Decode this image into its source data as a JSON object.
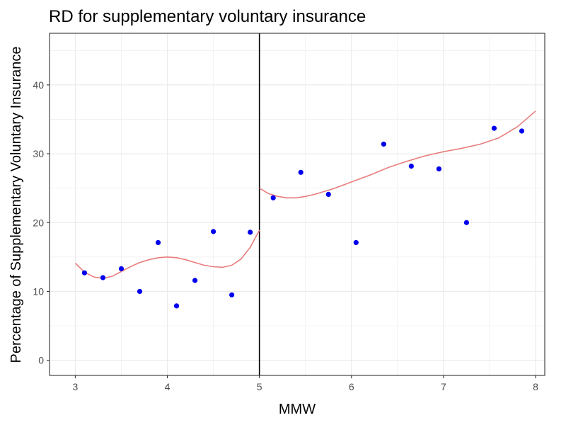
{
  "chart_data": {
    "type": "scatter",
    "title": "RD for supplementary voluntary insurance",
    "xlabel": "MMW",
    "ylabel": "Percentage of Supplementary Voluntary Insurance",
    "xlim": [
      2.72,
      8.1
    ],
    "ylim": [
      -2.2,
      47.5
    ],
    "x_ticks": [
      3,
      4,
      5,
      6,
      7,
      8
    ],
    "y_ticks": [
      0,
      10,
      20,
      30,
      40
    ],
    "x_minor": [
      3.5,
      4.5,
      5.5,
      6.5,
      7.5
    ],
    "y_minor": [
      5,
      15,
      25,
      35,
      45
    ],
    "grid": true,
    "cutoff": 5,
    "points": [
      {
        "x": 3.1,
        "y": 12.7
      },
      {
        "x": 3.3,
        "y": 12.0
      },
      {
        "x": 3.5,
        "y": 13.3
      },
      {
        "x": 3.7,
        "y": 10.0
      },
      {
        "x": 3.9,
        "y": 17.1
      },
      {
        "x": 4.1,
        "y": 7.9
      },
      {
        "x": 4.3,
        "y": 11.6
      },
      {
        "x": 4.5,
        "y": 18.7
      },
      {
        "x": 4.7,
        "y": 9.5
      },
      {
        "x": 4.9,
        "y": 18.6
      },
      {
        "x": 5.15,
        "y": 23.6
      },
      {
        "x": 5.45,
        "y": 27.3
      },
      {
        "x": 5.75,
        "y": 24.1
      },
      {
        "x": 6.05,
        "y": 17.1
      },
      {
        "x": 6.35,
        "y": 31.4
      },
      {
        "x": 6.65,
        "y": 28.2
      },
      {
        "x": 6.95,
        "y": 27.8
      },
      {
        "x": 7.25,
        "y": 20.0
      },
      {
        "x": 7.55,
        "y": 33.7
      },
      {
        "x": 7.85,
        "y": 33.3
      }
    ],
    "fit_left": {
      "x": [
        3.0,
        3.1,
        3.2,
        3.3,
        3.4,
        3.5,
        3.6,
        3.7,
        3.8,
        3.9,
        4.0,
        4.1,
        4.2,
        4.3,
        4.4,
        4.5,
        4.6,
        4.7,
        4.8,
        4.9,
        5.0
      ],
      "y": [
        14.1,
        12.8,
        12.1,
        11.9,
        12.2,
        12.9,
        13.6,
        14.2,
        14.6,
        14.9,
        15.0,
        14.9,
        14.6,
        14.2,
        13.8,
        13.6,
        13.5,
        13.8,
        14.7,
        16.4,
        18.9
      ]
    },
    "fit_right": {
      "x": [
        5.0,
        5.1,
        5.2,
        5.3,
        5.4,
        5.5,
        5.6,
        5.7,
        5.8,
        5.9,
        6.0,
        6.2,
        6.4,
        6.6,
        6.8,
        7.0,
        7.2,
        7.4,
        7.6,
        7.8,
        8.0
      ],
      "y": [
        25.0,
        24.2,
        23.8,
        23.6,
        23.6,
        23.8,
        24.1,
        24.5,
        24.9,
        25.4,
        25.9,
        26.9,
        28.0,
        28.9,
        29.7,
        30.3,
        30.8,
        31.4,
        32.3,
        33.9,
        36.2
      ]
    },
    "colors": {
      "points": "#0000ee",
      "fit": "#e87d7d",
      "cutoff": "#000000",
      "grid": "#ebebeb",
      "panel_border": "#333333"
    }
  }
}
